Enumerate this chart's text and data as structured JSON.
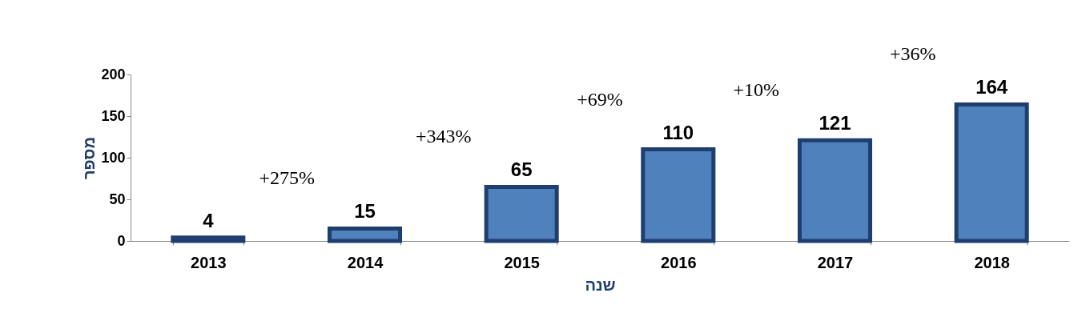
{
  "chart_data": {
    "type": "bar",
    "categories": [
      "2013",
      "2014",
      "2015",
      "2016",
      "2017",
      "2018"
    ],
    "values": [
      4,
      15,
      65,
      110,
      121,
      164
    ],
    "color": "#4f81bd",
    "ylim": [
      0,
      200
    ],
    "yticks": [
      0,
      50,
      100,
      150,
      200
    ],
    "ylabel": "מספר",
    "xlabel": "שנה",
    "data_labels": true,
    "grid": false,
    "annotations": [
      "+275%",
      "+343%",
      "+69%",
      "+10%",
      "+36%"
    ]
  }
}
